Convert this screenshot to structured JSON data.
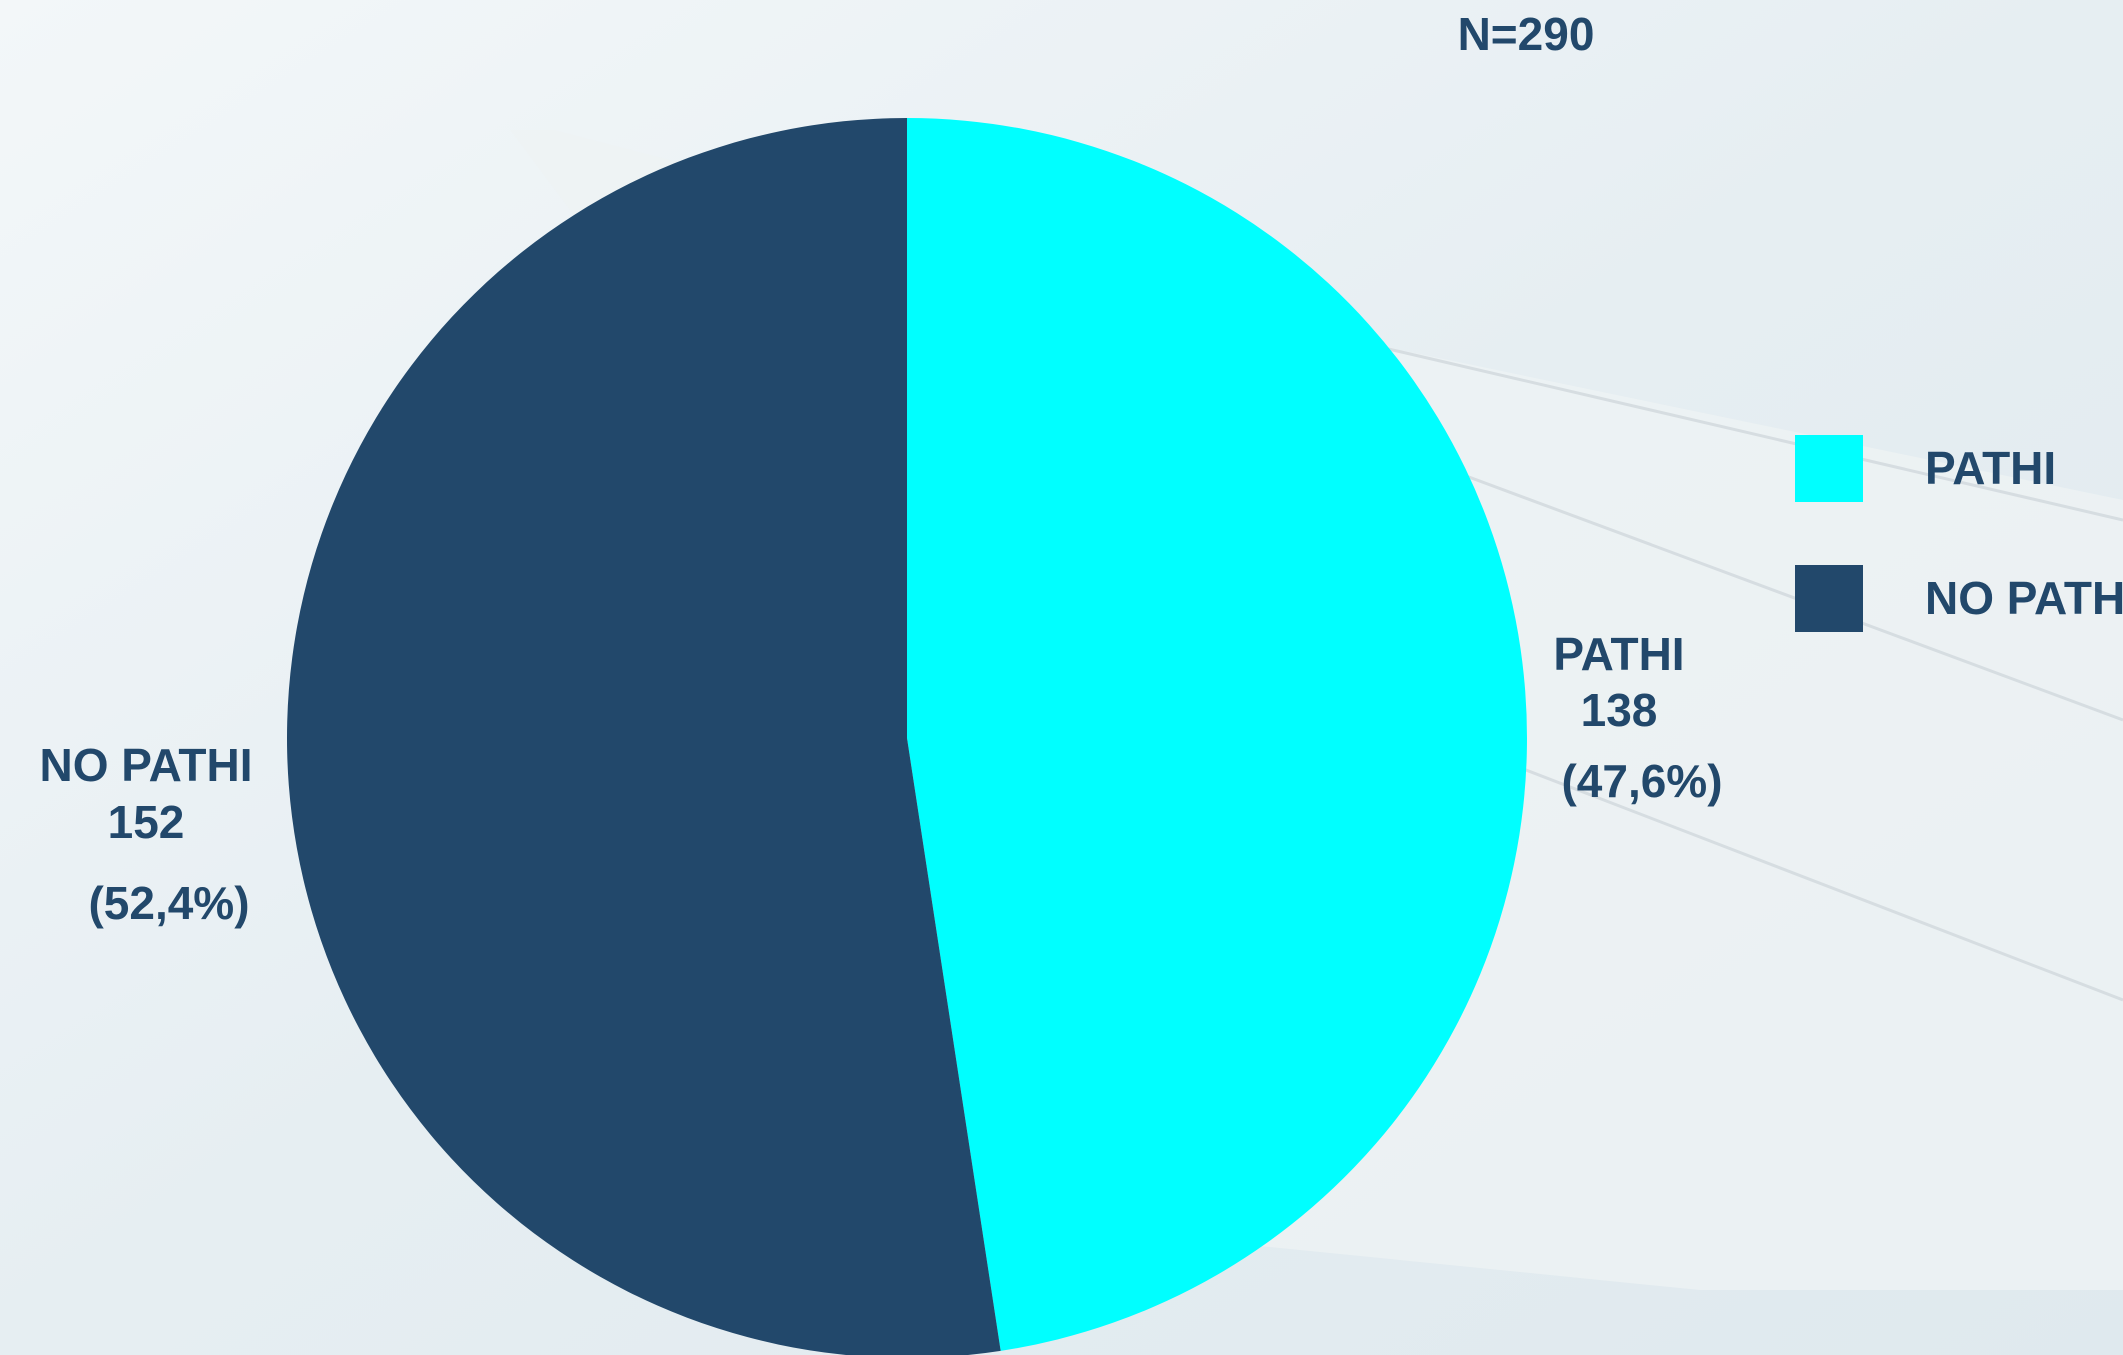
{
  "chart_data": {
    "type": "pie",
    "title": "N=290",
    "categories": [
      "PATHI",
      "NO PATHI"
    ],
    "values": [
      138,
      152
    ],
    "percents": [
      47.6,
      52.4
    ],
    "percent_labels": [
      "(47,6%)",
      "(52,4%)"
    ],
    "colors": [
      "#00ffff",
      "#22486b"
    ],
    "legend": "right"
  }
}
